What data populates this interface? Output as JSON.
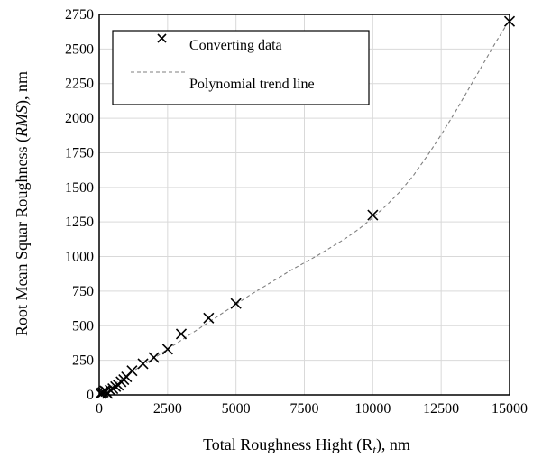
{
  "chart_data": {
    "type": "scatter",
    "title": "",
    "xlabel": "Total Roughness Hight (R",
    "xlabel_sub": "t",
    "xlabel_suffix": "), nm",
    "ylabel": "Root Mean Squar Roughness (",
    "ylabel_italic": "RMS",
    "ylabel_suffix": "), nm",
    "xlim": [
      0,
      15000
    ],
    "ylim": [
      0,
      2750
    ],
    "xticks": [
      0,
      2500,
      5000,
      7500,
      10000,
      12500,
      15000
    ],
    "yticks": [
      0,
      250,
      500,
      750,
      1000,
      1250,
      1500,
      1750,
      2000,
      2250,
      2500,
      2750
    ],
    "grid": true,
    "legend_position": "top-left",
    "series": [
      {
        "name": "Converting data",
        "marker": "x",
        "x": [
          50,
          100,
          150,
          200,
          250,
          300,
          400,
          500,
          600,
          700,
          800,
          900,
          1000,
          1200,
          1600,
          2000,
          2500,
          3000,
          4000,
          5000,
          10000,
          15000
        ],
        "y": [
          10,
          15,
          20,
          30,
          25,
          10,
          35,
          45,
          60,
          70,
          95,
          110,
          130,
          175,
          225,
          270,
          330,
          440,
          555,
          660,
          1300,
          2700
        ]
      },
      {
        "name": "Polynomial trend line",
        "line_style": "dashed",
        "x": [
          0,
          250,
          500,
          1000,
          1500,
          2000,
          2500,
          3000,
          3500,
          4000,
          4500,
          5000,
          5500,
          6000,
          6500,
          7000,
          7500,
          8000,
          8500,
          9000,
          9500,
          10000,
          10500,
          11000,
          11500,
          12000,
          12500,
          13000,
          13500,
          14000,
          14500,
          15000
        ],
        "y": [
          0,
          35,
          70,
          140,
          205,
          265,
          330,
          395,
          460,
          525,
          590,
          655,
          720,
          780,
          840,
          900,
          955,
          1010,
          1070,
          1130,
          1200,
          1280,
          1370,
          1470,
          1590,
          1730,
          1880,
          2040,
          2210,
          2380,
          2550,
          2710
        ]
      }
    ]
  }
}
